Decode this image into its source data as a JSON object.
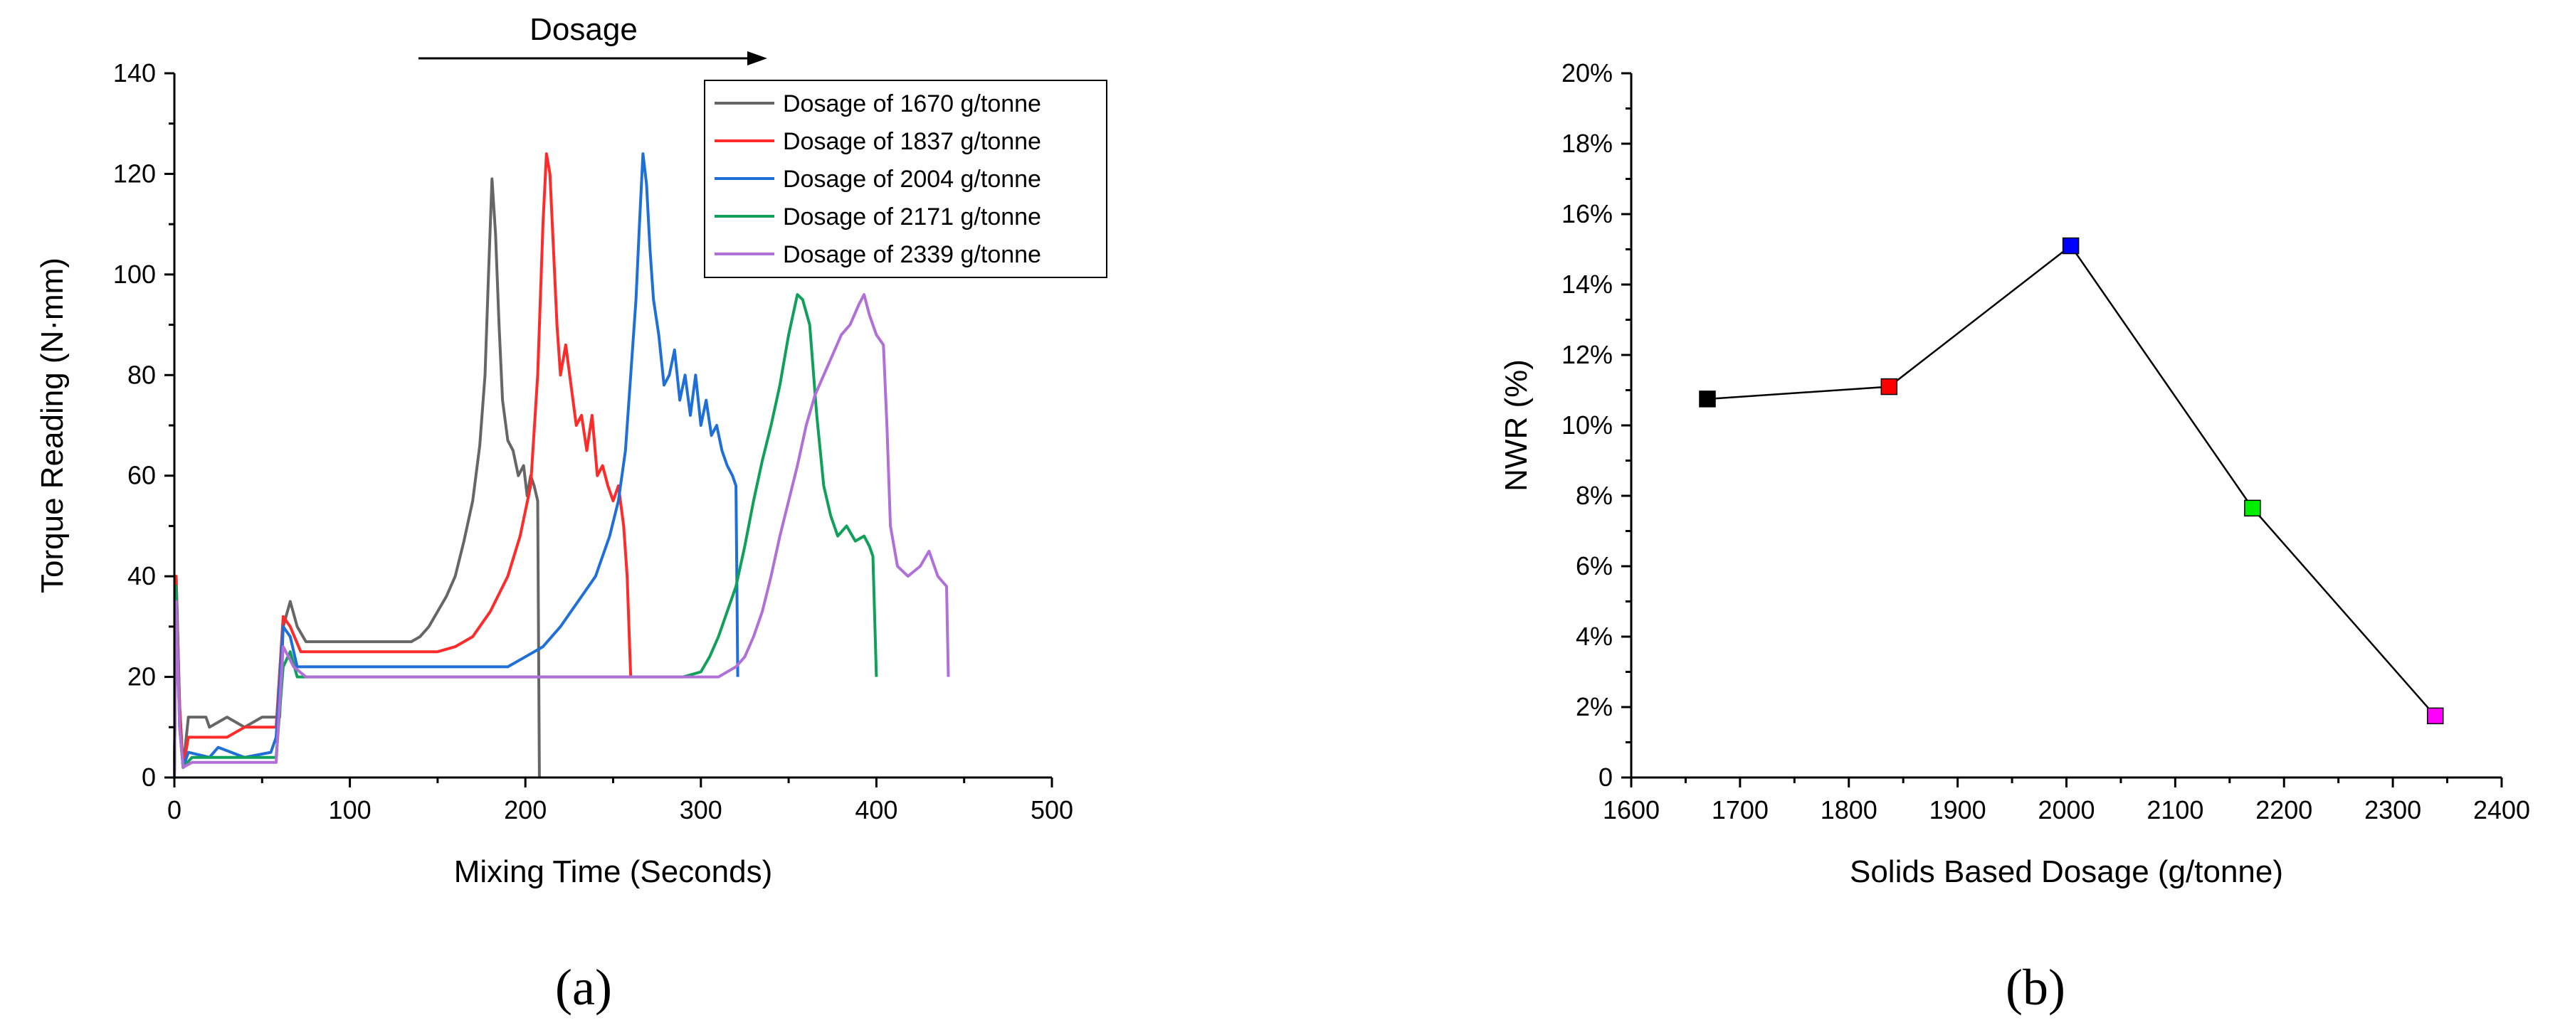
{
  "panels": {
    "a_label": "(a)",
    "b_label": "(b)"
  },
  "chart_data": [
    {
      "type": "line",
      "title": "",
      "annotation": "Dosage",
      "xlabel": "Mixing Time (Seconds)",
      "ylabel": "Torque Reading (N·mm)",
      "xlim": [
        0,
        500
      ],
      "ylim": [
        0,
        140
      ],
      "xticks": [
        "0",
        "100",
        "200",
        "300",
        "400",
        "500"
      ],
      "yticks": [
        "0",
        "20",
        "40",
        "60",
        "80",
        "100",
        "120",
        "140"
      ],
      "grid": false,
      "legend": "top-right",
      "series": [
        {
          "name": "Dosage of 1670 g/tonne",
          "color": "#666666",
          "points": [
            [
              0,
              0
            ],
            [
              1,
              40
            ],
            [
              3,
              14
            ],
            [
              5,
              2
            ],
            [
              8,
              12
            ],
            [
              18,
              12
            ],
            [
              20,
              10
            ],
            [
              30,
              12
            ],
            [
              40,
              10
            ],
            [
              50,
              12
            ],
            [
              58,
              12
            ],
            [
              60,
              12
            ],
            [
              62,
              30
            ],
            [
              66,
              35
            ],
            [
              70,
              30
            ],
            [
              75,
              27
            ],
            [
              100,
              27
            ],
            [
              120,
              27
            ],
            [
              135,
              27
            ],
            [
              140,
              28
            ],
            [
              145,
              30
            ],
            [
              150,
              33
            ],
            [
              155,
              36
            ],
            [
              160,
              40
            ],
            [
              165,
              47
            ],
            [
              170,
              55
            ],
            [
              174,
              66
            ],
            [
              177,
              80
            ],
            [
              179,
              100
            ],
            [
              181,
              119
            ],
            [
              183,
              108
            ],
            [
              185,
              90
            ],
            [
              187,
              75
            ],
            [
              190,
              67
            ],
            [
              193,
              65
            ],
            [
              196,
              60
            ],
            [
              199,
              62
            ],
            [
              201,
              56
            ],
            [
              203,
              60
            ],
            [
              205,
              58
            ],
            [
              207,
              55
            ],
            [
              208,
              0
            ]
          ]
        },
        {
          "name": "Dosage of 1837 g/tonne",
          "color": "#ff2a2a",
          "points": [
            [
              0,
              0
            ],
            [
              1,
              40
            ],
            [
              3,
              14
            ],
            [
              5,
              2
            ],
            [
              8,
              8
            ],
            [
              30,
              8
            ],
            [
              40,
              10
            ],
            [
              58,
              10
            ],
            [
              62,
              32
            ],
            [
              66,
              30
            ],
            [
              72,
              25
            ],
            [
              100,
              25
            ],
            [
              130,
              25
            ],
            [
              150,
              25
            ],
            [
              160,
              26
            ],
            [
              170,
              28
            ],
            [
              180,
              33
            ],
            [
              190,
              40
            ],
            [
              197,
              48
            ],
            [
              203,
              58
            ],
            [
              207,
              80
            ],
            [
              210,
              110
            ],
            [
              212,
              124
            ],
            [
              214,
              120
            ],
            [
              216,
              105
            ],
            [
              218,
              90
            ],
            [
              220,
              80
            ],
            [
              223,
              86
            ],
            [
              226,
              78
            ],
            [
              229,
              70
            ],
            [
              232,
              72
            ],
            [
              235,
              65
            ],
            [
              238,
              72
            ],
            [
              241,
              60
            ],
            [
              244,
              62
            ],
            [
              247,
              58
            ],
            [
              250,
              55
            ],
            [
              253,
              58
            ],
            [
              256,
              50
            ],
            [
              258,
              40
            ],
            [
              260,
              20
            ]
          ]
        },
        {
          "name": "Dosage of 2004 g/tonne",
          "color": "#1f6fd8",
          "points": [
            [
              0,
              0
            ],
            [
              1,
              38
            ],
            [
              3,
              10
            ],
            [
              5,
              2
            ],
            [
              8,
              5
            ],
            [
              20,
              4
            ],
            [
              25,
              6
            ],
            [
              40,
              4
            ],
            [
              55,
              5
            ],
            [
              58,
              8
            ],
            [
              62,
              30
            ],
            [
              66,
              28
            ],
            [
              70,
              22
            ],
            [
              100,
              22
            ],
            [
              150,
              22
            ],
            [
              190,
              22
            ],
            [
              200,
              24
            ],
            [
              210,
              26
            ],
            [
              220,
              30
            ],
            [
              230,
              35
            ],
            [
              240,
              40
            ],
            [
              248,
              48
            ],
            [
              253,
              55
            ],
            [
              257,
              65
            ],
            [
              260,
              80
            ],
            [
              263,
              95
            ],
            [
              265,
              110
            ],
            [
              267,
              124
            ],
            [
              269,
              118
            ],
            [
              271,
              105
            ],
            [
              273,
              95
            ],
            [
              276,
              88
            ],
            [
              279,
              78
            ],
            [
              282,
              80
            ],
            [
              285,
              85
            ],
            [
              288,
              75
            ],
            [
              291,
              80
            ],
            [
              294,
              72
            ],
            [
              297,
              80
            ],
            [
              300,
              70
            ],
            [
              303,
              75
            ],
            [
              306,
              68
            ],
            [
              309,
              70
            ],
            [
              312,
              65
            ],
            [
              315,
              62
            ],
            [
              318,
              60
            ],
            [
              320,
              58
            ],
            [
              321,
              20
            ]
          ]
        },
        {
          "name": "Dosage of 2171 g/tonne",
          "color": "#0fa05a",
          "points": [
            [
              0,
              0
            ],
            [
              1,
              38
            ],
            [
              3,
              10
            ],
            [
              5,
              2
            ],
            [
              10,
              4
            ],
            [
              58,
              4
            ],
            [
              62,
              22
            ],
            [
              66,
              25
            ],
            [
              70,
              20
            ],
            [
              150,
              20
            ],
            [
              250,
              20
            ],
            [
              290,
              20
            ],
            [
              300,
              21
            ],
            [
              305,
              24
            ],
            [
              310,
              28
            ],
            [
              315,
              33
            ],
            [
              320,
              38
            ],
            [
              325,
              46
            ],
            [
              330,
              55
            ],
            [
              335,
              63
            ],
            [
              340,
              70
            ],
            [
              345,
              78
            ],
            [
              350,
              88
            ],
            [
              355,
              96
            ],
            [
              358,
              95
            ],
            [
              362,
              90
            ],
            [
              366,
              72
            ],
            [
              370,
              58
            ],
            [
              374,
              52
            ],
            [
              378,
              48
            ],
            [
              383,
              50
            ],
            [
              388,
              47
            ],
            [
              393,
              48
            ],
            [
              396,
              46
            ],
            [
              398,
              44
            ],
            [
              400,
              20
            ]
          ]
        },
        {
          "name": "Dosage of 2339 g/tonne",
          "color": "#b070d8",
          "points": [
            [
              0,
              0
            ],
            [
              1,
              35
            ],
            [
              3,
              10
            ],
            [
              5,
              2
            ],
            [
              10,
              3
            ],
            [
              58,
              3
            ],
            [
              62,
              26
            ],
            [
              68,
              22
            ],
            [
              75,
              20
            ],
            [
              150,
              20
            ],
            [
              250,
              20
            ],
            [
              300,
              20
            ],
            [
              310,
              20
            ],
            [
              315,
              21
            ],
            [
              320,
              22
            ],
            [
              325,
              24
            ],
            [
              330,
              28
            ],
            [
              335,
              33
            ],
            [
              340,
              40
            ],
            [
              345,
              48
            ],
            [
              350,
              55
            ],
            [
              355,
              62
            ],
            [
              360,
              70
            ],
            [
              365,
              76
            ],
            [
              370,
              80
            ],
            [
              375,
              84
            ],
            [
              380,
              88
            ],
            [
              385,
              90
            ],
            [
              390,
              94
            ],
            [
              393,
              96
            ],
            [
              396,
              92
            ],
            [
              400,
              88
            ],
            [
              404,
              86
            ],
            [
              406,
              70
            ],
            [
              408,
              50
            ],
            [
              412,
              42
            ],
            [
              418,
              40
            ],
            [
              425,
              42
            ],
            [
              430,
              45
            ],
            [
              435,
              40
            ],
            [
              440,
              38
            ],
            [
              441,
              20
            ]
          ]
        }
      ]
    },
    {
      "type": "line",
      "title": "",
      "xlabel": "Solids Based Dosage (g/tonne)",
      "ylabel": "NWR (%)",
      "xlim": [
        1600,
        2400
      ],
      "ylim": [
        0,
        20
      ],
      "xticks": [
        "1600",
        "1700",
        "1800",
        "1900",
        "2000",
        "2100",
        "2200",
        "2300",
        "2400"
      ],
      "yticks": [
        "0",
        "2%",
        "4%",
        "6%",
        "8%",
        "10%",
        "12%",
        "14%",
        "16%",
        "18%",
        "20%"
      ],
      "grid": false,
      "line_color": "#000000",
      "points": [
        {
          "x": 1670,
          "y": 10.75,
          "color": "#000000"
        },
        {
          "x": 1837,
          "y": 11.1,
          "color": "#ff0000"
        },
        {
          "x": 2004,
          "y": 15.1,
          "color": "#0000ff"
        },
        {
          "x": 2171,
          "y": 7.65,
          "color": "#00ee00"
        },
        {
          "x": 2339,
          "y": 1.75,
          "color": "#ff00ff"
        }
      ]
    }
  ]
}
